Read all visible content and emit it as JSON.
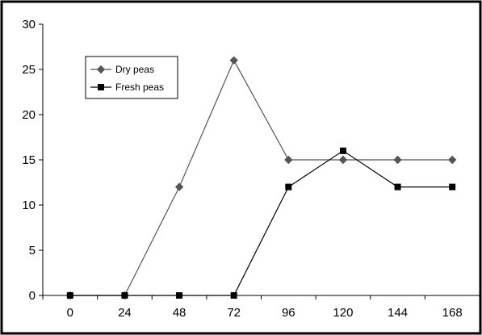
{
  "chart_data": {
    "type": "line",
    "x": [
      0,
      24,
      48,
      72,
      96,
      120,
      144,
      168
    ],
    "x_tick_labels": [
      "0",
      "24",
      "48",
      "72",
      "96",
      "120",
      "144",
      "168"
    ],
    "y_tick_labels": [
      "0",
      "5",
      "10",
      "15",
      "20",
      "25",
      "30"
    ],
    "ylim": [
      0,
      30
    ],
    "grid": false,
    "legend_position": "top-left",
    "series": [
      {
        "name": "Dry peas",
        "marker": "diamond",
        "color": "#555555",
        "values": [
          0,
          0,
          12,
          26,
          15,
          15,
          15,
          15
        ]
      },
      {
        "name": "Fresh peas",
        "marker": "square",
        "color": "#000000",
        "values": [
          0,
          0,
          0,
          0,
          12,
          16,
          12,
          12
        ]
      }
    ]
  }
}
